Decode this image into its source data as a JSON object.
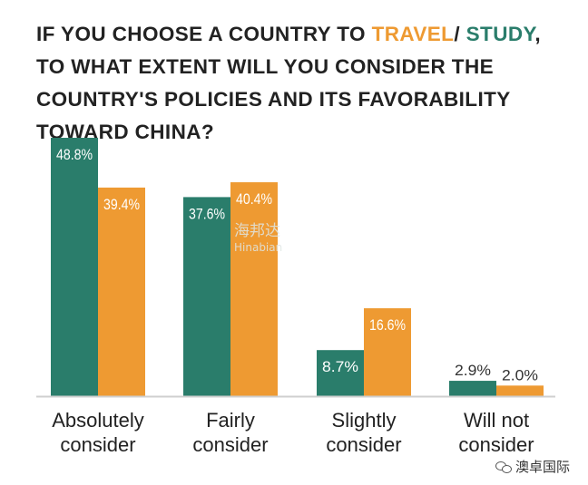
{
  "title": {
    "part1": "IF YOU CHOOSE A COUNTRY TO ",
    "travel": "TRAVEL",
    "slash": "/ ",
    "study": "STUDY",
    "part2": ", TO WHAT EXTENT WILL YOU CONSIDER THE COUNTRY'S POLICIES AND ITS FAVORABILITY TOWARD CHINA?"
  },
  "colors": {
    "study": "#2a7d6b",
    "travel": "#ee9a32",
    "axis": "#cfcfcf",
    "text": "#222222"
  },
  "watermark": {
    "cn": "海邦达",
    "en": "Hinabian"
  },
  "footer": {
    "brand": "澳卓国际",
    "icon": "wechat-icon"
  },
  "chart_data": {
    "type": "bar",
    "categories": [
      "Absolutely\nconsider",
      "Fairly\nconsider",
      "Slightly\nconsider",
      "Will not\nconsider"
    ],
    "series": [
      {
        "name": "STUDY",
        "values": [
          48.8,
          37.6,
          8.7,
          2.9
        ],
        "labels": [
          "48.8%",
          "37.6%",
          "8.7%",
          "2.9%"
        ]
      },
      {
        "name": "TRAVEL",
        "values": [
          39.4,
          40.4,
          16.6,
          2.0
        ],
        "labels": [
          "39.4%",
          "40.4%",
          "16.6%",
          "2.0%"
        ]
      }
    ],
    "ylim": [
      0,
      50
    ],
    "grid": false,
    "legend": "none"
  }
}
